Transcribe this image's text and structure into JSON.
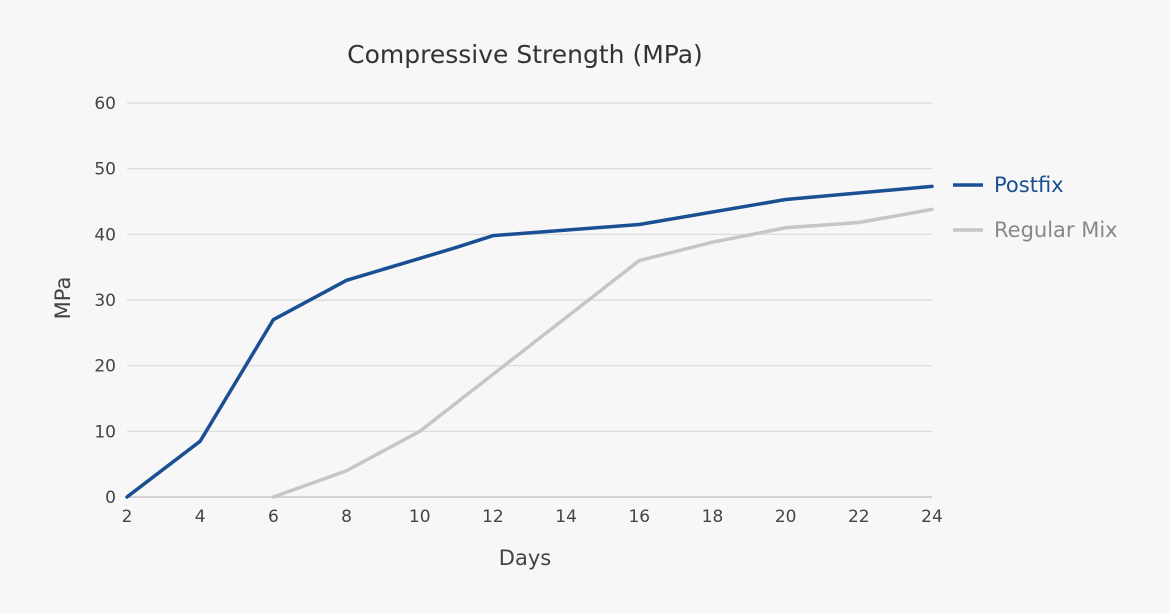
{
  "chart_data": {
    "type": "line",
    "title": "Compressive Strength (MPa)",
    "xlabel": "Days",
    "ylabel": "MPa",
    "xlim": [
      2,
      24
    ],
    "ylim": [
      0,
      60
    ],
    "x_ticks": [
      2,
      4,
      6,
      8,
      10,
      12,
      14,
      16,
      18,
      20,
      22,
      24
    ],
    "y_ticks": [
      0,
      10,
      20,
      30,
      40,
      50,
      60
    ],
    "grid": true,
    "legend_position": "right",
    "series": [
      {
        "name": "Postfix",
        "color": "#1b4f93",
        "points": [
          [
            2,
            0
          ],
          [
            4,
            8.5
          ],
          [
            6,
            27
          ],
          [
            8,
            33
          ],
          [
            11,
            38
          ],
          [
            12,
            39.8
          ],
          [
            16,
            41.5
          ],
          [
            20,
            45.3
          ],
          [
            24,
            47.3
          ]
        ]
      },
      {
        "name": "Regular Mix",
        "color": "#c6c6c6",
        "points": [
          [
            6,
            0
          ],
          [
            8,
            4
          ],
          [
            10,
            10
          ],
          [
            16,
            36
          ],
          [
            18,
            38.8
          ],
          [
            20,
            41
          ],
          [
            22,
            41.8
          ],
          [
            24,
            43.8
          ]
        ]
      }
    ]
  }
}
